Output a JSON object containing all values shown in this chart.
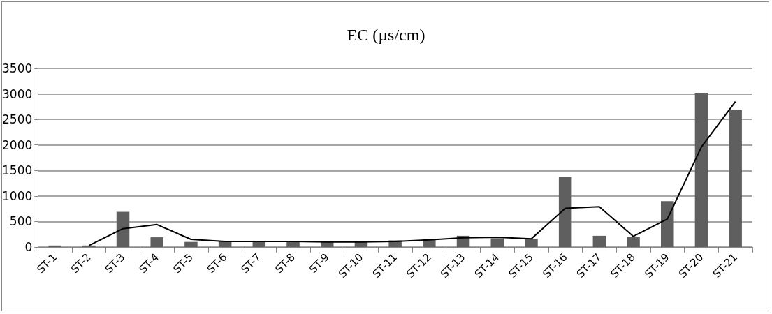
{
  "chart_data": {
    "type": "bar",
    "title": "EC (µs/cm)",
    "categories": [
      "ST-1",
      "ST-2",
      "ST-3",
      "ST-4",
      "ST-5",
      "ST-6",
      "ST-7",
      "ST-8",
      "ST-9",
      "ST-10",
      "ST-11",
      "ST-12",
      "ST-13",
      "ST-14",
      "ST-15",
      "ST-16",
      "ST-17",
      "ST-18",
      "ST-19",
      "ST-20",
      "ST-21"
    ],
    "series": [
      {
        "color": "#5f5f5f",
        "values": [
          30,
          30,
          690,
          190,
          100,
          110,
          110,
          100,
          100,
          100,
          130,
          150,
          220,
          170,
          160,
          1370,
          220,
          200,
          900,
          3020,
          2680
        ]
      },
      {
        "type": "line",
        "color": "#000000",
        "values": [
          null,
          30,
          360,
          440,
          150,
          110,
          110,
          110,
          100,
          100,
          110,
          140,
          180,
          190,
          160,
          760,
          790,
          210,
          550,
          1960,
          2850
        ]
      }
    ],
    "ylim": [
      0,
      3500
    ],
    "yticks": [
      0,
      500,
      1000,
      1500,
      2000,
      2500,
      3000,
      3500
    ],
    "grid": "y",
    "marker": "none",
    "line_style": "solid"
  }
}
